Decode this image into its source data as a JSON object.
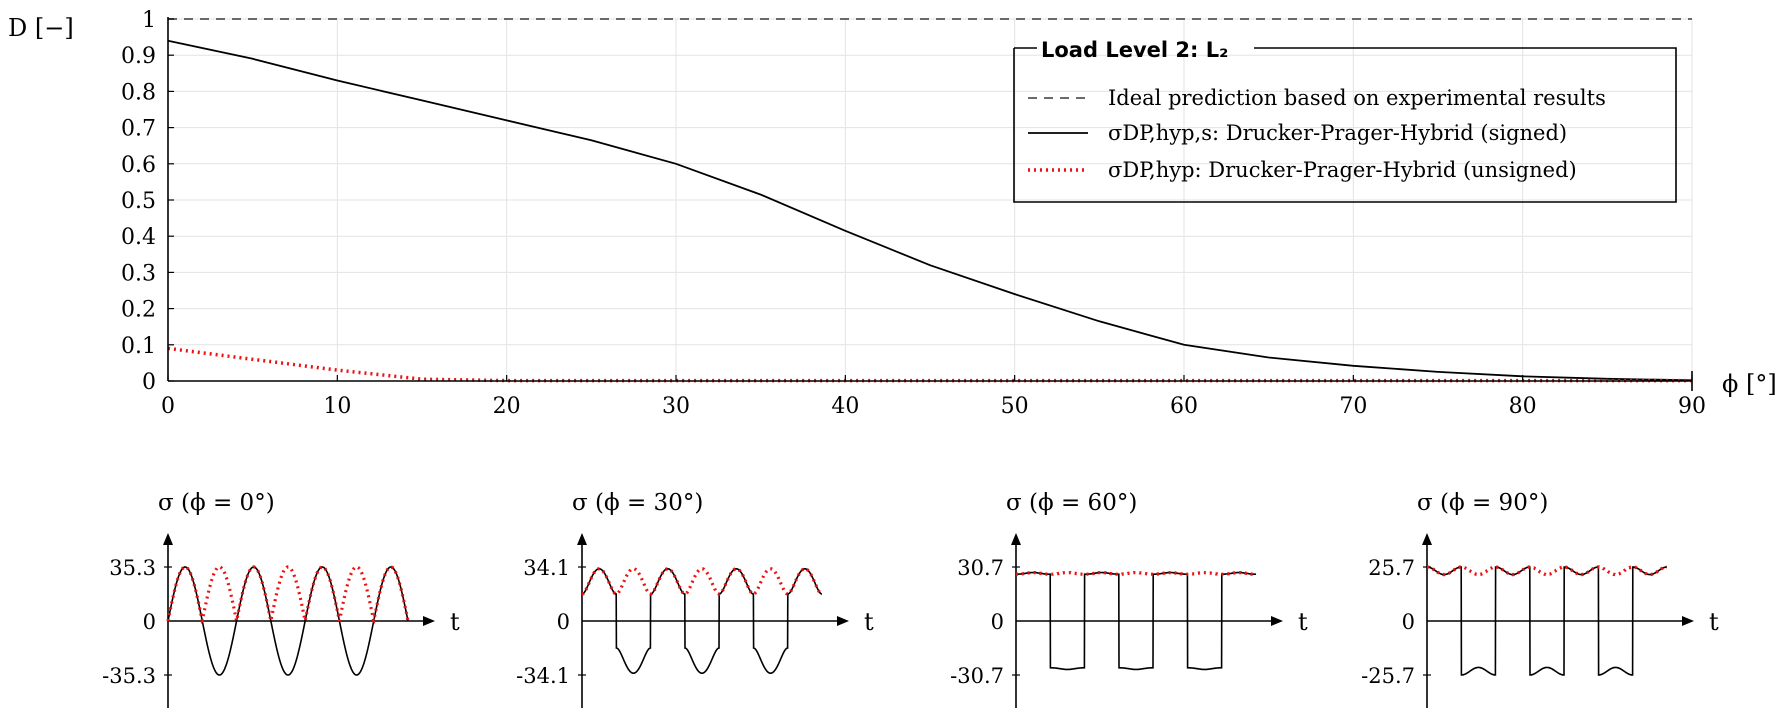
{
  "chart_data": [
    {
      "type": "line",
      "ylabel": "D [−]",
      "xlabel": "ϕ [°]",
      "xlim": [
        0,
        90
      ],
      "ylim": [
        0,
        1
      ],
      "x_ticks": [
        "0",
        "10",
        "20",
        "30",
        "40",
        "50",
        "60",
        "70",
        "80",
        "90"
      ],
      "y_ticks": [
        "0",
        "0.1",
        "0.2",
        "0.3",
        "0.4",
        "0.5",
        "0.6",
        "0.7",
        "0.8",
        "0.9",
        "1"
      ],
      "grid": true,
      "legend_position": "top-right",
      "legend_title": "Load Level 2: L₂",
      "series": [
        {
          "name": "Ideal prediction based on experimental results",
          "style": "dashed",
          "color": "#555555",
          "x": [
            0,
            90
          ],
          "y": [
            1,
            1
          ]
        },
        {
          "name": "σDP,hyp,s: Drucker-Prager-Hybrid (signed)",
          "style": "solid",
          "color": "#000000",
          "x": [
            0,
            5,
            10,
            15,
            20,
            25,
            30,
            35,
            40,
            45,
            50,
            55,
            60,
            65,
            70,
            75,
            80,
            85,
            90
          ],
          "y": [
            0.94,
            0.89,
            0.83,
            0.775,
            0.72,
            0.665,
            0.6,
            0.515,
            0.415,
            0.32,
            0.24,
            0.165,
            0.1,
            0.065,
            0.042,
            0.025,
            0.013,
            0.006,
            0.002
          ]
        },
        {
          "name": "σDP,hyp:   Drucker-Prager-Hybrid (unsigned)",
          "style": "dotted",
          "color": "#ee1111",
          "x": [
            0,
            5,
            10,
            15,
            20,
            30,
            45,
            60,
            75,
            90
          ],
          "y": [
            0.09,
            0.06,
            0.03,
            0.005,
            0.001,
            0.001,
            0.001,
            0.001,
            0.001,
            0.001
          ]
        }
      ]
    },
    {
      "type": "line",
      "title": "σ (ϕ = 0°)",
      "xlabel": "t",
      "y_ticks": [
        "35.3",
        "0",
        "-35.3"
      ],
      "amplitude": 35.3,
      "phi": 0
    },
    {
      "type": "line",
      "title": "σ (ϕ = 30°)",
      "xlabel": "t",
      "y_ticks": [
        "34.1",
        "0",
        "-34.1"
      ],
      "amplitude": 34.1,
      "phi": 30
    },
    {
      "type": "line",
      "title": "σ (ϕ = 60°)",
      "xlabel": "t",
      "y_ticks": [
        "30.7",
        "0",
        "-30.7"
      ],
      "amplitude": 30.7,
      "phi": 60
    },
    {
      "type": "line",
      "title": "σ (ϕ = 90°)",
      "xlabel": "t",
      "y_ticks": [
        "25.7",
        "0",
        "-25.7"
      ],
      "amplitude": 25.7,
      "phi": 90
    }
  ]
}
